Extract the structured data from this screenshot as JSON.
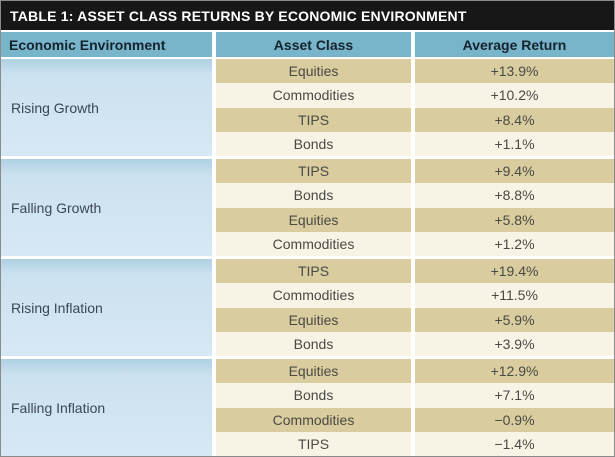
{
  "title": "TABLE 1: ASSET CLASS RETURNS BY ECONOMIC ENVIRONMENT",
  "columns": {
    "environment": "Economic Environment",
    "asset": "Asset Class",
    "avg_return": "Average Return"
  },
  "groups": [
    {
      "environment": "Rising Growth",
      "rows": [
        {
          "asset": "Equities",
          "avg_return": "+13.9%"
        },
        {
          "asset": "Commodities",
          "avg_return": "+10.2%"
        },
        {
          "asset": "TIPS",
          "avg_return": "+8.4%"
        },
        {
          "asset": "Bonds",
          "avg_return": "+1.1%"
        }
      ]
    },
    {
      "environment": "Falling Growth",
      "rows": [
        {
          "asset": "TIPS",
          "avg_return": "+9.4%"
        },
        {
          "asset": "Bonds",
          "avg_return": "+8.8%"
        },
        {
          "asset": "Equities",
          "avg_return": "+5.8%"
        },
        {
          "asset": "Commodities",
          "avg_return": "+1.2%"
        }
      ]
    },
    {
      "environment": "Rising Inflation",
      "rows": [
        {
          "asset": "TIPS",
          "avg_return": "+19.4%"
        },
        {
          "asset": "Commodities",
          "avg_return": "+11.5%"
        },
        {
          "asset": "Equities",
          "avg_return": "+5.9%"
        },
        {
          "asset": "Bonds",
          "avg_return": "+3.9%"
        }
      ]
    },
    {
      "environment": "Falling Inflation",
      "rows": [
        {
          "asset": "Equities",
          "avg_return": "+12.9%"
        },
        {
          "asset": "Bonds",
          "avg_return": "+7.1%"
        },
        {
          "asset": "Commodities",
          "avg_return": "−0.9%"
        },
        {
          "asset": "TIPS",
          "avg_return": "−1.4%"
        }
      ]
    }
  ],
  "colors": {
    "title_bar_bg": "#171717",
    "title_text": "#ffffff",
    "header_bg": "#79b5ca",
    "environment_cell_bg": "#cfe2ef",
    "row_tan": "#d9cc9f",
    "row_cream": "#f8f4e5",
    "cell_text": "#4a4a45"
  },
  "chart_data": {
    "type": "table",
    "title": "TABLE 1: ASSET CLASS RETURNS BY ECONOMIC ENVIRONMENT",
    "columns": [
      "Economic Environment",
      "Asset Class",
      "Average Return (%)"
    ],
    "rows": [
      [
        "Rising Growth",
        "Equities",
        13.9
      ],
      [
        "Rising Growth",
        "Commodities",
        10.2
      ],
      [
        "Rising Growth",
        "TIPS",
        8.4
      ],
      [
        "Rising Growth",
        "Bonds",
        1.1
      ],
      [
        "Falling Growth",
        "TIPS",
        9.4
      ],
      [
        "Falling Growth",
        "Bonds",
        8.8
      ],
      [
        "Falling Growth",
        "Equities",
        5.8
      ],
      [
        "Falling Growth",
        "Commodities",
        1.2
      ],
      [
        "Rising Inflation",
        "TIPS",
        19.4
      ],
      [
        "Rising Inflation",
        "Commodities",
        11.5
      ],
      [
        "Rising Inflation",
        "Equities",
        5.9
      ],
      [
        "Rising Inflation",
        "Bonds",
        3.9
      ],
      [
        "Falling Inflation",
        "Equities",
        12.9
      ],
      [
        "Falling Inflation",
        "Bonds",
        7.1
      ],
      [
        "Falling Inflation",
        "Commodities",
        -0.9
      ],
      [
        "Falling Inflation",
        "TIPS",
        -1.4
      ]
    ]
  }
}
